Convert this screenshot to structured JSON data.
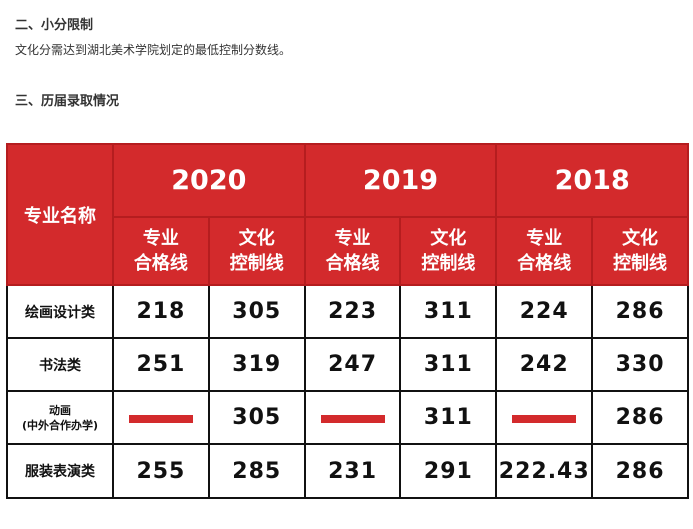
{
  "section2": {
    "heading": "二、小分限制",
    "text": "文化分需达到湖北美术学院划定的最低控制分数线。"
  },
  "section3": {
    "heading": "三、历届录取情况"
  },
  "table": {
    "name_header": "专业名称",
    "years": [
      "2020",
      "2019",
      "2018"
    ],
    "sub_headers": {
      "major_line1": "专业",
      "major_line2": "合格线",
      "culture_line1": "文化",
      "culture_line2": "控制线"
    },
    "rows": [
      {
        "name": "绘画设计类",
        "values": [
          "218",
          "305",
          "223",
          "311",
          "224",
          "286"
        ]
      },
      {
        "name": "书法类",
        "values": [
          "251",
          "319",
          "247",
          "311",
          "242",
          "330"
        ]
      },
      {
        "name_line1": "动画",
        "name_line2": "(中外合作办学)",
        "values": [
          "—",
          "305",
          "—",
          "311",
          "—",
          "286"
        ]
      },
      {
        "name": "服装表演类",
        "values": [
          "255",
          "285",
          "231",
          "291",
          "222.43",
          "286"
        ]
      }
    ],
    "colors": {
      "header_bg": "#d32a2c",
      "dash": "#d32a2c"
    }
  }
}
